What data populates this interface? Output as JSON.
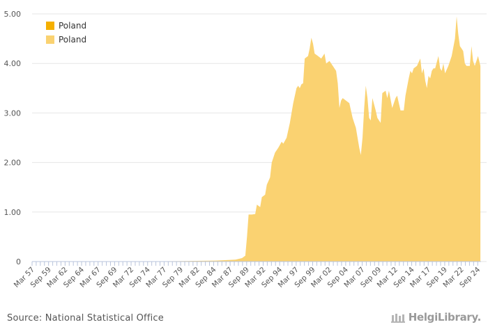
{
  "chart_data": {
    "type": "area",
    "title": "",
    "xlabel": "",
    "ylabel": "",
    "ylim": [
      0,
      5
    ],
    "y_ticks": [
      "0",
      "1.00",
      "2.00",
      "3.00",
      "4.00",
      "5.00"
    ],
    "x_tick_labels": [
      "Mar 57",
      "Sep 59",
      "Mar 62",
      "Sep 64",
      "Mar 67",
      "Sep 69",
      "Mar 72",
      "Sep 74",
      "Mar 77",
      "Sep 79",
      "Mar 82",
      "Sep 84",
      "Mar 87",
      "Sep 89",
      "Mar 92",
      "Sep 94",
      "Mar 97",
      "Sep 99",
      "Mar 02",
      "Sep 04",
      "Mar 07",
      "Sep 09",
      "Mar 12",
      "Sep 14",
      "Mar 17",
      "Sep 19",
      "Mar 22",
      "Sep 24"
    ],
    "legend": {
      "position": "top-left",
      "entries": [
        "Poland",
        "Poland"
      ]
    },
    "series": [
      {
        "name": "Poland",
        "color": "#f5b000",
        "points": []
      },
      {
        "name": "Poland",
        "color": "#fad271",
        "x_unit": "year (decimal)",
        "points": [
          [
            1957.2,
            0.0
          ],
          [
            1970.0,
            0.0
          ],
          [
            1980.0,
            0.01
          ],
          [
            1985.0,
            0.02
          ],
          [
            1988.0,
            0.04
          ],
          [
            1989.0,
            0.07
          ],
          [
            1989.5,
            0.12
          ],
          [
            1989.75,
            0.5
          ],
          [
            1990.0,
            0.95
          ],
          [
            1990.5,
            0.95
          ],
          [
            1991.0,
            0.96
          ],
          [
            1991.25,
            1.15
          ],
          [
            1991.75,
            1.1
          ],
          [
            1992.0,
            1.3
          ],
          [
            1992.5,
            1.35
          ],
          [
            1992.75,
            1.55
          ],
          [
            1993.25,
            1.7
          ],
          [
            1993.5,
            2.0
          ],
          [
            1994.0,
            2.2
          ],
          [
            1994.5,
            2.3
          ],
          [
            1995.0,
            2.42
          ],
          [
            1995.25,
            2.38
          ],
          [
            1995.75,
            2.5
          ],
          [
            1996.25,
            2.8
          ],
          [
            1996.75,
            3.2
          ],
          [
            1997.25,
            3.5
          ],
          [
            1997.5,
            3.55
          ],
          [
            1997.75,
            3.5
          ],
          [
            1998.0,
            3.58
          ],
          [
            1998.25,
            3.6
          ],
          [
            1998.5,
            4.1
          ],
          [
            1999.0,
            4.15
          ],
          [
            1999.25,
            4.3
          ],
          [
            1999.5,
            4.52
          ],
          [
            1999.75,
            4.4
          ],
          [
            2000.0,
            4.2
          ],
          [
            2000.5,
            4.15
          ],
          [
            2001.0,
            4.1
          ],
          [
            2001.5,
            4.2
          ],
          [
            2001.75,
            4.0
          ],
          [
            2002.25,
            4.05
          ],
          [
            2002.75,
            3.95
          ],
          [
            2003.25,
            3.85
          ],
          [
            2003.5,
            3.6
          ],
          [
            2003.75,
            3.1
          ],
          [
            2004.0,
            3.25
          ],
          [
            2004.25,
            3.3
          ],
          [
            2004.75,
            3.25
          ],
          [
            2005.25,
            3.2
          ],
          [
            2005.5,
            3.05
          ],
          [
            2005.75,
            2.9
          ],
          [
            2006.25,
            2.7
          ],
          [
            2006.5,
            2.5
          ],
          [
            2006.75,
            2.3
          ],
          [
            2007.0,
            2.15
          ],
          [
            2007.25,
            2.5
          ],
          [
            2007.5,
            3.1
          ],
          [
            2007.75,
            3.55
          ],
          [
            2008.0,
            3.3
          ],
          [
            2008.25,
            2.9
          ],
          [
            2008.5,
            2.85
          ],
          [
            2008.75,
            3.3
          ],
          [
            2009.25,
            3.05
          ],
          [
            2009.5,
            2.9
          ],
          [
            2009.75,
            2.85
          ],
          [
            2010.0,
            2.8
          ],
          [
            2010.25,
            3.4
          ],
          [
            2010.75,
            3.45
          ],
          [
            2011.0,
            3.3
          ],
          [
            2011.25,
            3.45
          ],
          [
            2011.75,
            3.1
          ],
          [
            2012.25,
            3.3
          ],
          [
            2012.5,
            3.35
          ],
          [
            2012.75,
            3.2
          ],
          [
            2013.0,
            3.05
          ],
          [
            2013.5,
            3.05
          ],
          [
            2013.75,
            3.35
          ],
          [
            2014.25,
            3.7
          ],
          [
            2014.5,
            3.85
          ],
          [
            2014.75,
            3.8
          ],
          [
            2015.0,
            3.9
          ],
          [
            2015.5,
            3.95
          ],
          [
            2016.0,
            4.1
          ],
          [
            2016.25,
            3.8
          ],
          [
            2016.5,
            3.9
          ],
          [
            2016.75,
            3.65
          ],
          [
            2017.0,
            3.5
          ],
          [
            2017.25,
            3.75
          ],
          [
            2017.5,
            3.7
          ],
          [
            2017.75,
            3.85
          ],
          [
            2018.0,
            3.9
          ],
          [
            2018.25,
            3.9
          ],
          [
            2018.75,
            4.15
          ],
          [
            2019.0,
            3.9
          ],
          [
            2019.25,
            3.85
          ],
          [
            2019.5,
            4.0
          ],
          [
            2019.75,
            3.8
          ],
          [
            2020.25,
            3.95
          ],
          [
            2020.5,
            4.05
          ],
          [
            2020.75,
            4.15
          ],
          [
            2021.25,
            4.5
          ],
          [
            2021.5,
            4.95
          ],
          [
            2021.75,
            4.6
          ],
          [
            2022.0,
            4.35
          ],
          [
            2022.25,
            4.3
          ],
          [
            2022.5,
            4.25
          ],
          [
            2022.75,
            4.0
          ],
          [
            2023.0,
            3.95
          ],
          [
            2023.5,
            3.95
          ],
          [
            2023.75,
            4.35
          ],
          [
            2024.0,
            4.05
          ],
          [
            2024.25,
            3.95
          ],
          [
            2024.5,
            4.05
          ],
          [
            2024.75,
            4.15
          ],
          [
            2025.1,
            3.95
          ]
        ]
      }
    ]
  },
  "footer": {
    "source": "Source: National Statistical Office",
    "brand": "HelgiLibrary."
  }
}
